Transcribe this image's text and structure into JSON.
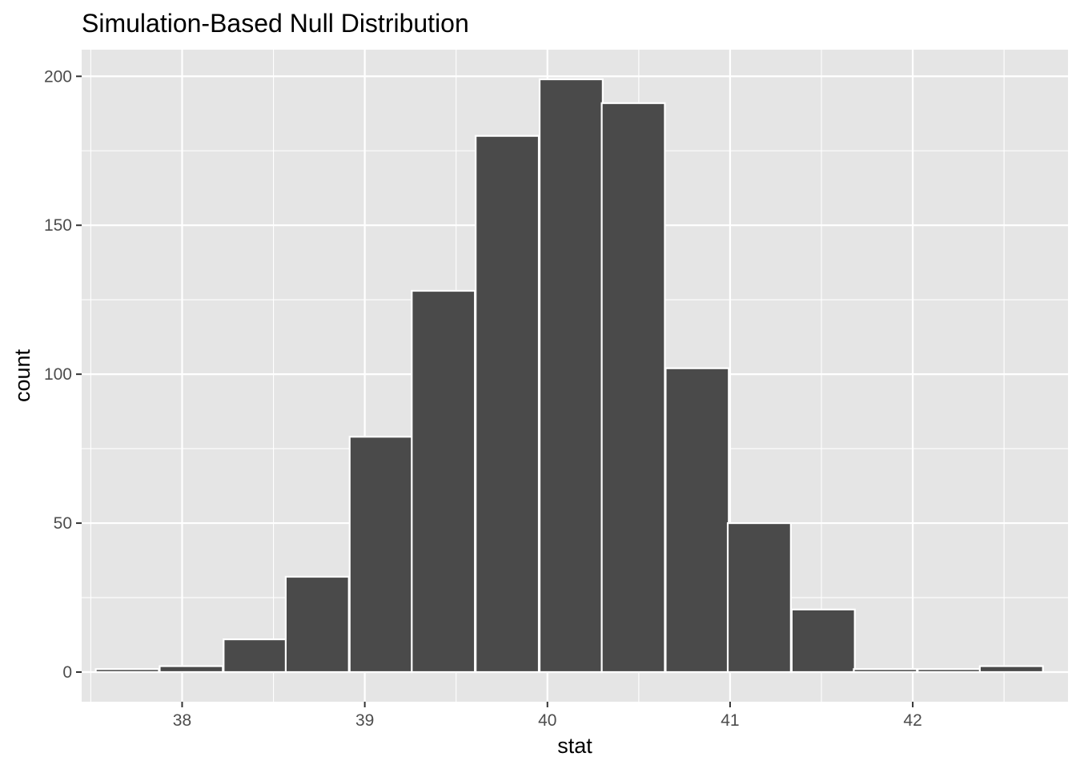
{
  "chart_data": {
    "type": "bar",
    "title": "Simulation-Based Null Distribution",
    "xlabel": "stat",
    "ylabel": "count",
    "xlim": [
      37.45,
      42.85
    ],
    "ylim": [
      -9.95,
      208.95
    ],
    "x_ticks": [
      38,
      39,
      40,
      41,
      42
    ],
    "y_ticks": [
      0,
      50,
      100,
      150,
      200
    ],
    "bin_width": 0.3456,
    "bins": [
      {
        "x": 37.7,
        "count": 1
      },
      {
        "x": 38.05,
        "count": 2
      },
      {
        "x": 38.4,
        "count": 11
      },
      {
        "x": 38.74,
        "count": 32
      },
      {
        "x": 39.09,
        "count": 79
      },
      {
        "x": 39.43,
        "count": 128
      },
      {
        "x": 39.78,
        "count": 180
      },
      {
        "x": 40.13,
        "count": 199
      },
      {
        "x": 40.47,
        "count": 191
      },
      {
        "x": 40.82,
        "count": 102
      },
      {
        "x": 41.16,
        "count": 50
      },
      {
        "x": 41.51,
        "count": 21
      },
      {
        "x": 41.85,
        "count": 1
      },
      {
        "x": 42.2,
        "count": 1
      },
      {
        "x": 42.54,
        "count": 2
      }
    ],
    "grid": true,
    "colors": {
      "panel_background": "#e5e5e5",
      "grid_line": "#ffffff",
      "bar_fill": "#4a4a4a",
      "bar_outline": "#ffffff",
      "tick_text": "#4d4d4d",
      "axis_title_text": "#000000"
    }
  }
}
